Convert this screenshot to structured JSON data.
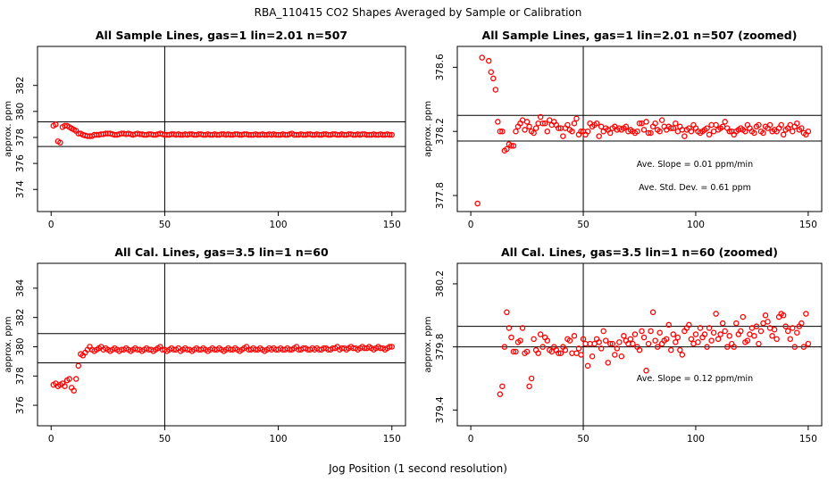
{
  "figure": {
    "title": "RBA_110415  CO2 Shapes Averaged by Sample or Calibration",
    "xlabel": "Jog Position (1 second resolution)"
  },
  "colors": {
    "points": "#ff0000",
    "lines": "#000000"
  },
  "chart_data": [
    {
      "type": "scatter",
      "title": "All Sample Lines, gas=1 lin=2.01 n=507",
      "ylabel": "approx. ppm",
      "xlim": [
        -6,
        156
      ],
      "ylim": [
        372.3,
        385.0
      ],
      "xticks": [
        0,
        50,
        100,
        150
      ],
      "yticks": [
        374,
        376,
        378,
        380,
        382
      ],
      "vline": 50,
      "hlines": [
        379.2,
        377.3
      ],
      "annotations": [],
      "x": [
        1,
        2,
        3,
        4,
        5,
        6,
        7,
        8,
        9,
        10,
        11,
        12,
        13,
        14,
        15,
        16,
        17,
        18,
        19,
        20,
        21,
        22,
        23,
        24,
        25,
        26,
        27,
        28,
        29,
        30,
        31,
        32,
        33,
        34,
        35,
        36,
        37,
        38,
        39,
        40,
        41,
        42,
        43,
        44,
        45,
        46,
        47,
        48,
        49,
        50,
        51,
        52,
        53,
        54,
        55,
        56,
        57,
        58,
        59,
        60,
        61,
        62,
        63,
        64,
        65,
        66,
        67,
        68,
        69,
        70,
        71,
        72,
        73,
        74,
        75,
        76,
        77,
        78,
        79,
        80,
        81,
        82,
        83,
        84,
        85,
        86,
        87,
        88,
        89,
        90,
        91,
        92,
        93,
        94,
        95,
        96,
        97,
        98,
        99,
        100,
        101,
        102,
        103,
        104,
        105,
        106,
        107,
        108,
        109,
        110,
        111,
        112,
        113,
        114,
        115,
        116,
        117,
        118,
        119,
        120,
        121,
        122,
        123,
        124,
        125,
        126,
        127,
        128,
        129,
        130,
        131,
        132,
        133,
        134,
        135,
        136,
        137,
        138,
        139,
        140,
        141,
        142,
        143,
        144,
        145,
        146,
        147,
        148,
        149,
        150
      ],
      "y": [
        378.9,
        379.0,
        377.7,
        377.6,
        378.8,
        378.9,
        378.9,
        378.8,
        378.7,
        378.6,
        378.5,
        378.3,
        378.3,
        378.2,
        378.15,
        378.1,
        378.1,
        378.1,
        378.2,
        378.2,
        378.2,
        378.25,
        378.25,
        378.3,
        378.3,
        378.3,
        378.25,
        378.2,
        378.2,
        378.25,
        378.3,
        378.3,
        378.25,
        378.3,
        378.25,
        378.2,
        378.25,
        378.3,
        378.25,
        378.25,
        378.2,
        378.2,
        378.25,
        378.25,
        378.2,
        378.2,
        378.25,
        378.3,
        378.25,
        378.2,
        378.2,
        378.2,
        378.25,
        378.25,
        378.2,
        378.25,
        378.2,
        378.2,
        378.25,
        378.2,
        378.25,
        378.25,
        378.2,
        378.2,
        378.25,
        378.25,
        378.2,
        378.2,
        378.25,
        378.2,
        378.2,
        378.25,
        378.2,
        378.2,
        378.25,
        378.25,
        378.2,
        378.25,
        378.2,
        378.2,
        378.25,
        378.25,
        378.2,
        378.2,
        378.25,
        378.25,
        378.2,
        378.2,
        378.2,
        378.25,
        378.2,
        378.2,
        378.25,
        378.2,
        378.2,
        378.25,
        378.2,
        378.25,
        378.2,
        378.2,
        378.2,
        378.25,
        378.2,
        378.2,
        378.25,
        378.3,
        378.2,
        378.2,
        378.2,
        378.25,
        378.2,
        378.2,
        378.25,
        378.25,
        378.2,
        378.2,
        378.25,
        378.2,
        378.2,
        378.25,
        378.25,
        378.2,
        378.2,
        378.25,
        378.25,
        378.2,
        378.2,
        378.25,
        378.2,
        378.2,
        378.25,
        378.25,
        378.2,
        378.2,
        378.25,
        378.2,
        378.25,
        378.25,
        378.2,
        378.2,
        378.2,
        378.25,
        378.2,
        378.2,
        378.25,
        378.2,
        378.2,
        378.25,
        378.2,
        378.2
      ]
    },
    {
      "type": "scatter",
      "title": "All Sample Lines, gas=1 lin=2.01 n=507 (zoomed)",
      "ylabel": "approx. ppm",
      "xlim": [
        -6,
        156
      ],
      "ylim": [
        377.7,
        378.73
      ],
      "xticks": [
        0,
        50,
        100,
        150
      ],
      "yticks": [
        377.8,
        378.2,
        378.6
      ],
      "vline": 50,
      "hlines": [
        378.3,
        378.14
      ],
      "annotations": [
        "Ave. Slope =  0.01  ppm/min",
        "Ave. Std. Dev. =  0.61  ppm"
      ],
      "x": [
        3,
        5,
        8,
        9,
        10,
        11,
        12,
        13,
        14,
        15,
        16,
        17,
        18,
        19,
        20,
        21,
        22,
        23,
        24,
        25,
        26,
        27,
        28,
        29,
        30,
        31,
        32,
        33,
        34,
        35,
        36,
        37,
        38,
        39,
        40,
        41,
        42,
        43,
        44,
        45,
        46,
        47,
        48,
        49,
        50,
        51,
        52,
        53,
        54,
        55,
        56,
        57,
        58,
        59,
        60,
        61,
        62,
        63,
        64,
        65,
        66,
        67,
        68,
        69,
        70,
        71,
        72,
        73,
        74,
        75,
        76,
        77,
        78,
        79,
        80,
        81,
        82,
        83,
        84,
        85,
        86,
        87,
        88,
        89,
        90,
        91,
        92,
        93,
        94,
        95,
        96,
        97,
        98,
        99,
        100,
        101,
        102,
        103,
        104,
        105,
        106,
        107,
        108,
        109,
        110,
        111,
        112,
        113,
        114,
        115,
        116,
        117,
        118,
        119,
        120,
        121,
        122,
        123,
        124,
        125,
        126,
        127,
        128,
        129,
        130,
        131,
        132,
        133,
        134,
        135,
        136,
        137,
        138,
        139,
        140,
        141,
        142,
        143,
        144,
        145,
        146,
        147,
        148,
        149,
        150
      ],
      "y": [
        377.75,
        378.66,
        378.64,
        378.57,
        378.53,
        378.46,
        378.26,
        378.2,
        378.2,
        378.08,
        378.09,
        378.12,
        378.11,
        378.11,
        378.2,
        378.23,
        378.25,
        378.27,
        378.21,
        378.26,
        378.23,
        378.2,
        378.19,
        378.22,
        378.25,
        378.29,
        378.25,
        378.25,
        378.2,
        378.27,
        378.24,
        378.26,
        378.24,
        378.22,
        378.22,
        378.17,
        378.22,
        378.24,
        378.21,
        378.2,
        378.25,
        378.28,
        378.18,
        378.2,
        378.2,
        378.18,
        378.2,
        378.25,
        378.23,
        378.24,
        378.25,
        378.17,
        378.23,
        378.2,
        378.22,
        378.21,
        378.19,
        378.22,
        378.23,
        378.21,
        378.22,
        378.21,
        378.22,
        378.23,
        378.2,
        378.21,
        378.2,
        378.19,
        378.2,
        378.25,
        378.25,
        378.21,
        378.26,
        378.19,
        378.19,
        378.23,
        378.25,
        378.21,
        378.2,
        378.27,
        378.23,
        378.21,
        378.23,
        378.22,
        378.22,
        378.25,
        378.2,
        378.23,
        378.21,
        378.17,
        378.21,
        378.22,
        378.2,
        378.24,
        378.22,
        378.2,
        378.19,
        378.2,
        378.21,
        378.22,
        378.18,
        378.24,
        378.2,
        378.24,
        378.21,
        378.22,
        378.23,
        378.26,
        378.22,
        378.2,
        378.2,
        378.18,
        378.2,
        378.21,
        378.22,
        378.21,
        378.2,
        378.24,
        378.22,
        378.2,
        378.19,
        378.23,
        378.24,
        378.2,
        378.19,
        378.23,
        378.22,
        378.24,
        378.2,
        378.21,
        378.2,
        378.22,
        378.24,
        378.18,
        378.21,
        378.22,
        378.24,
        378.2,
        378.23,
        378.25,
        378.21,
        378.22,
        378.19,
        378.18,
        378.2
      ]
    },
    {
      "type": "scatter",
      "title": "All Cal. Lines, gas=3.5 lin=1 n=60",
      "ylabel": "approx. ppm",
      "xlim": [
        -6,
        156
      ],
      "ylim": [
        374.6,
        385.7
      ],
      "xticks": [
        0,
        50,
        100,
        150
      ],
      "yticks": [
        376,
        378,
        380,
        382,
        384
      ],
      "vline": 50,
      "hlines": [
        380.9,
        378.9
      ],
      "annotations": [],
      "x": [
        1,
        2,
        3,
        4,
        5,
        6,
        7,
        8,
        9,
        10,
        11,
        12,
        13,
        14,
        15,
        16,
        17,
        18,
        19,
        20,
        21,
        22,
        23,
        24,
        25,
        26,
        27,
        28,
        29,
        30,
        31,
        32,
        33,
        34,
        35,
        36,
        37,
        38,
        39,
        40,
        41,
        42,
        43,
        44,
        45,
        46,
        47,
        48,
        49,
        50,
        51,
        52,
        53,
        54,
        55,
        56,
        57,
        58,
        59,
        60,
        61,
        62,
        63,
        64,
        65,
        66,
        67,
        68,
        69,
        70,
        71,
        72,
        73,
        74,
        75,
        76,
        77,
        78,
        79,
        80,
        81,
        82,
        83,
        84,
        85,
        86,
        87,
        88,
        89,
        90,
        91,
        92,
        93,
        94,
        95,
        96,
        97,
        98,
        99,
        100,
        101,
        102,
        103,
        104,
        105,
        106,
        107,
        108,
        109,
        110,
        111,
        112,
        113,
        114,
        115,
        116,
        117,
        118,
        119,
        120,
        121,
        122,
        123,
        124,
        125,
        126,
        127,
        128,
        129,
        130,
        131,
        132,
        133,
        134,
        135,
        136,
        137,
        138,
        139,
        140,
        141,
        142,
        143,
        144,
        145,
        146,
        147,
        148,
        149,
        150
      ],
      "y": [
        377.4,
        377.5,
        377.3,
        377.4,
        377.5,
        377.3,
        377.7,
        377.8,
        377.2,
        377.0,
        377.8,
        378.7,
        379.5,
        379.4,
        379.6,
        379.8,
        380.0,
        379.8,
        379.7,
        379.8,
        379.9,
        380.0,
        379.8,
        379.9,
        379.8,
        379.7,
        379.8,
        379.9,
        379.8,
        379.7,
        379.8,
        379.8,
        379.9,
        379.8,
        379.7,
        379.8,
        379.9,
        379.8,
        379.8,
        379.7,
        379.8,
        379.9,
        379.8,
        379.8,
        379.7,
        379.8,
        379.9,
        380.0,
        379.8,
        379.8,
        379.7,
        379.8,
        379.9,
        379.8,
        379.8,
        379.9,
        379.7,
        379.8,
        379.9,
        379.8,
        379.8,
        379.7,
        379.8,
        379.9,
        379.8,
        379.8,
        379.9,
        379.8,
        379.7,
        379.8,
        379.9,
        379.8,
        379.8,
        379.9,
        379.8,
        379.7,
        379.8,
        379.9,
        379.8,
        379.8,
        379.9,
        379.8,
        379.7,
        379.8,
        379.9,
        380.0,
        379.8,
        379.8,
        379.9,
        379.8,
        379.8,
        379.9,
        379.8,
        379.7,
        379.8,
        379.9,
        379.8,
        379.9,
        379.8,
        379.8,
        379.9,
        379.8,
        379.8,
        379.9,
        379.8,
        379.8,
        379.9,
        380.0,
        379.8,
        379.8,
        379.9,
        379.9,
        379.8,
        379.8,
        379.9,
        379.8,
        379.9,
        379.8,
        379.8,
        379.9,
        379.9,
        379.8,
        379.8,
        379.9,
        379.9,
        380.0,
        379.8,
        379.9,
        379.9,
        379.8,
        379.9,
        380.0,
        379.9,
        379.9,
        379.8,
        379.9,
        380.0,
        379.9,
        379.9,
        380.0,
        379.9,
        379.8,
        379.9,
        380.0,
        379.9,
        379.9,
        379.8,
        379.9,
        380.0,
        380.0
      ]
    },
    {
      "type": "scatter",
      "title": "All Cal. Lines, gas=3.5 lin=1 n=60 (zoomed)",
      "ylabel": "approx. ppm",
      "xlim": [
        -6,
        156
      ],
      "ylim": [
        379.3,
        380.33
      ],
      "xticks": [
        0,
        50,
        100,
        150
      ],
      "yticks": [
        379.4,
        379.8,
        380.2
      ],
      "vline": 50,
      "hlines": [
        379.93,
        379.8
      ],
      "annotations": [
        "Ave. Slope =  0.12  ppm/min"
      ],
      "x": [
        13,
        14,
        15,
        16,
        17,
        18,
        19,
        20,
        21,
        22,
        23,
        24,
        25,
        26,
        27,
        28,
        29,
        30,
        31,
        32,
        33,
        34,
        35,
        36,
        37,
        38,
        39,
        40,
        41,
        42,
        43,
        44,
        45,
        46,
        47,
        48,
        49,
        50,
        51,
        52,
        53,
        54,
        55,
        56,
        57,
        58,
        59,
        60,
        61,
        62,
        63,
        64,
        65,
        66,
        67,
        68,
        69,
        70,
        71,
        72,
        73,
        74,
        75,
        76,
        77,
        78,
        79,
        80,
        81,
        82,
        83,
        84,
        85,
        86,
        87,
        88,
        89,
        90,
        91,
        92,
        93,
        94,
        95,
        96,
        97,
        98,
        99,
        100,
        101,
        102,
        103,
        104,
        105,
        106,
        107,
        108,
        109,
        110,
        111,
        112,
        113,
        114,
        115,
        116,
        117,
        118,
        119,
        120,
        121,
        122,
        123,
        124,
        125,
        126,
        127,
        128,
        129,
        130,
        131,
        132,
        133,
        134,
        135,
        136,
        137,
        138,
        139,
        140,
        141,
        142,
        143,
        144,
        145,
        146,
        147,
        148,
        149,
        150
      ],
      "y": [
        379.5,
        379.55,
        379.8,
        380.02,
        379.92,
        379.86,
        379.77,
        379.77,
        379.83,
        379.84,
        379.92,
        379.76,
        379.77,
        379.55,
        379.6,
        379.85,
        379.78,
        379.76,
        379.88,
        379.8,
        379.86,
        379.84,
        379.78,
        379.77,
        379.8,
        379.78,
        379.76,
        379.76,
        379.8,
        379.78,
        379.85,
        379.84,
        379.76,
        379.87,
        379.76,
        379.79,
        379.75,
        379.85,
        379.82,
        379.68,
        379.82,
        379.74,
        379.82,
        379.85,
        379.83,
        379.79,
        379.9,
        379.84,
        379.7,
        379.82,
        379.82,
        379.75,
        379.79,
        379.83,
        379.74,
        379.87,
        379.84,
        379.82,
        379.85,
        379.82,
        379.88,
        379.8,
        379.78,
        379.9,
        379.86,
        379.65,
        379.82,
        379.9,
        380.02,
        379.84,
        379.8,
        379.89,
        379.82,
        379.84,
        379.85,
        379.94,
        379.78,
        379.88,
        379.83,
        379.86,
        379.78,
        379.75,
        379.9,
        379.92,
        379.94,
        379.85,
        379.82,
        379.88,
        379.83,
        379.92,
        379.86,
        379.88,
        379.8,
        379.92,
        379.84,
        379.89,
        380.01,
        379.85,
        379.88,
        379.95,
        379.9,
        379.8,
        379.87,
        379.82,
        379.8,
        379.95,
        379.88,
        379.9,
        379.99,
        379.83,
        379.84,
        379.88,
        379.92,
        379.87,
        379.93,
        379.82,
        379.9,
        379.95,
        380.0,
        379.96,
        379.92,
        379.87,
        379.91,
        379.85,
        379.99,
        380.01,
        380.0,
        379.93,
        379.9,
        379.85,
        379.92,
        379.8,
        379.89,
        379.93,
        379.95,
        379.8,
        380.01,
        379.82
      ]
    }
  ]
}
